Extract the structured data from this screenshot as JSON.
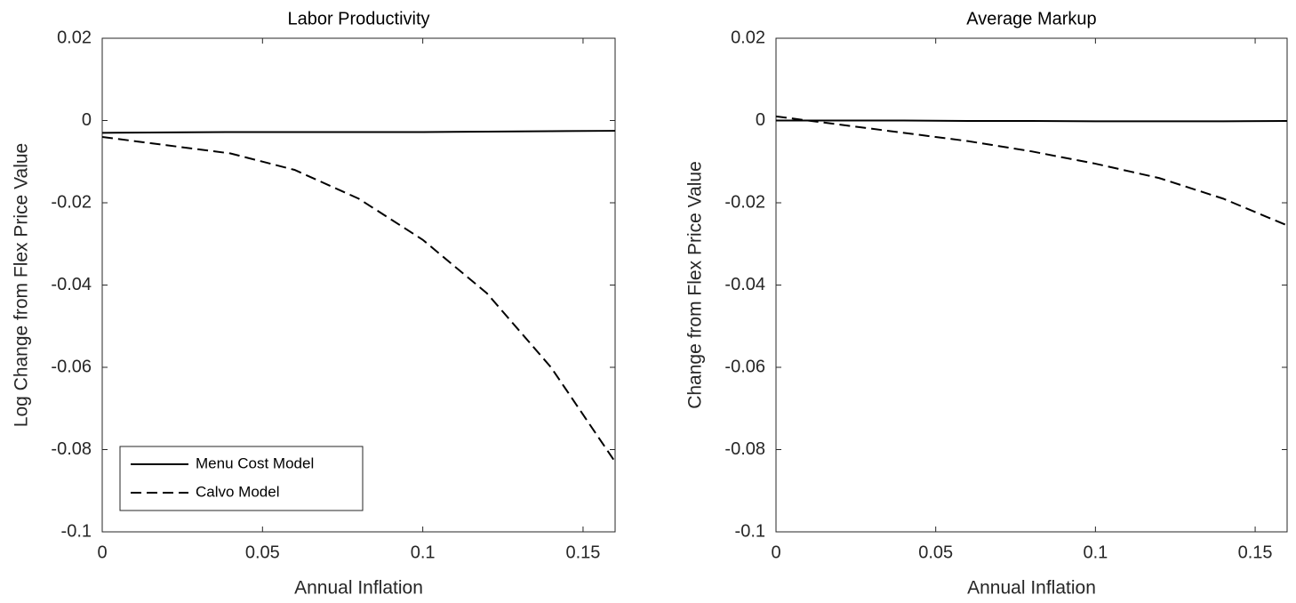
{
  "chart_data": [
    {
      "type": "line",
      "title": "Labor Productivity",
      "xlabel": "Annual Inflation",
      "ylabel": "Log Change from Flex Price Value",
      "xlim": [
        0,
        0.16
      ],
      "xticks": [
        0,
        0.05,
        0.1,
        0.15
      ],
      "ylim": [
        -0.1,
        0.02
      ],
      "yticks": [
        0.02,
        0,
        -0.02,
        -0.04,
        -0.06,
        -0.08,
        -0.1
      ],
      "legend": "lower left",
      "series": [
        {
          "name": "Menu Cost Model",
          "color": "#000000",
          "dashed": false,
          "x": [
            0,
            0.02,
            0.04,
            0.06,
            0.08,
            0.1,
            0.12,
            0.14,
            0.16
          ],
          "values": [
            -0.003,
            -0.0029,
            -0.0028,
            -0.0028,
            -0.0028,
            -0.0028,
            -0.0027,
            -0.0026,
            -0.0025
          ]
        },
        {
          "name": "Calvo Model",
          "color": "#000000",
          "dashed": true,
          "x": [
            0,
            0.02,
            0.04,
            0.06,
            0.08,
            0.1,
            0.12,
            0.14,
            0.16
          ],
          "values": [
            -0.004,
            -0.006,
            -0.008,
            -0.012,
            -0.019,
            -0.029,
            -0.042,
            -0.06,
            -0.083
          ]
        }
      ]
    },
    {
      "type": "line",
      "title": "Average Markup",
      "xlabel": "Annual Inflation",
      "ylabel": "Change from Flex Price Value",
      "xlim": [
        0,
        0.16
      ],
      "xticks": [
        0,
        0.05,
        0.1,
        0.15
      ],
      "ylim": [
        -0.1,
        0.02
      ],
      "yticks": [
        0.02,
        0,
        -0.02,
        -0.04,
        -0.06,
        -0.08,
        -0.1
      ],
      "series": [
        {
          "color": "#000000",
          "dashed": false,
          "x": [
            0,
            0.02,
            0.04,
            0.06,
            0.08,
            0.1,
            0.12,
            0.14,
            0.16
          ],
          "values": [
            0,
            0,
            0,
            -0.0001,
            -0.0001,
            -0.0002,
            -0.0002,
            -0.0002,
            -0.0001
          ]
        },
        {
          "color": "#000000",
          "dashed": true,
          "x": [
            0,
            0.02,
            0.04,
            0.06,
            0.08,
            0.1,
            0.12,
            0.14,
            0.16
          ],
          "values": [
            0.001,
            -0.001,
            -0.003,
            -0.005,
            -0.0075,
            -0.0105,
            -0.014,
            -0.019,
            -0.0255
          ]
        }
      ]
    }
  ]
}
